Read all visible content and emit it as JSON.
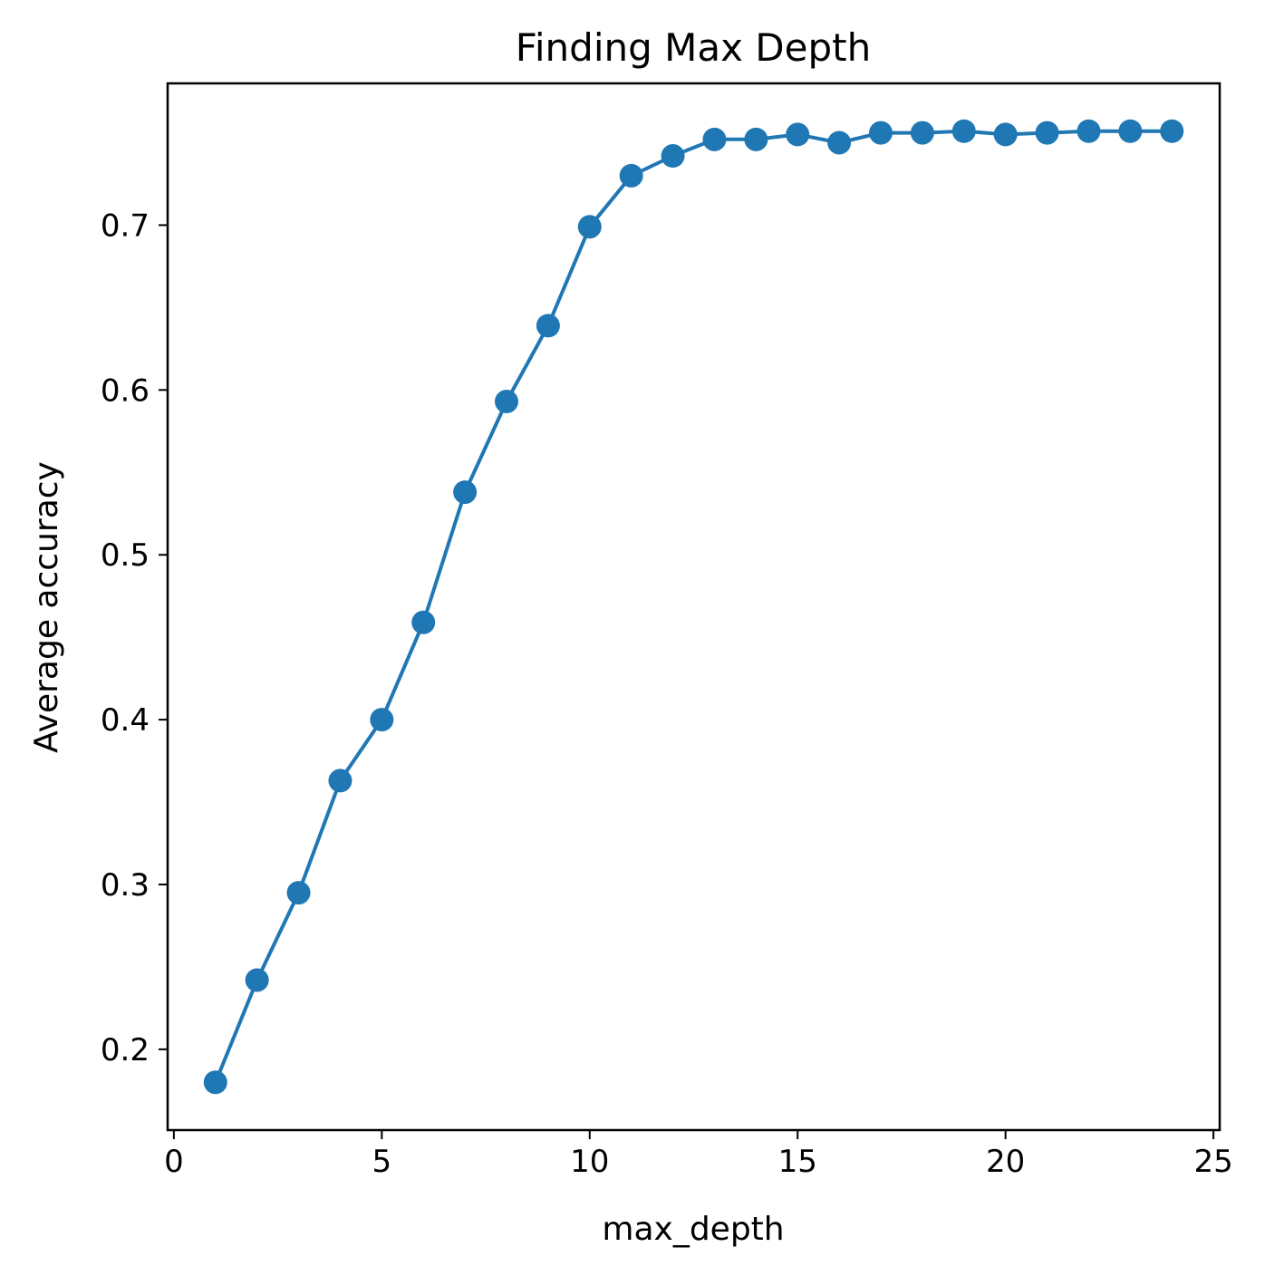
{
  "chart_data": {
    "type": "line",
    "title": "Finding Max Depth",
    "xlabel": "max_depth",
    "ylabel": "Average accuracy",
    "xlim": [
      -0.15,
      25.15
    ],
    "ylim": [
      0.151,
      0.786
    ],
    "xticks": [
      0,
      5,
      10,
      15,
      20,
      25
    ],
    "xtick_labels": [
      "0",
      "5",
      "10",
      "15",
      "20",
      "25"
    ],
    "yticks": [
      0.2,
      0.3,
      0.4,
      0.5,
      0.6,
      0.7
    ],
    "ytick_labels": [
      "0.2",
      "0.3",
      "0.4",
      "0.5",
      "0.6",
      "0.7"
    ],
    "grid": false,
    "line_color": "#1f77b4",
    "marker": "circle",
    "x": [
      1,
      2,
      3,
      4,
      5,
      6,
      7,
      8,
      9,
      10,
      11,
      12,
      13,
      14,
      15,
      16,
      17,
      18,
      19,
      20,
      21,
      22,
      23,
      24
    ],
    "y": [
      0.18,
      0.242,
      0.295,
      0.363,
      0.4,
      0.459,
      0.538,
      0.593,
      0.639,
      0.699,
      0.73,
      0.742,
      0.752,
      0.752,
      0.755,
      0.75,
      0.756,
      0.756,
      0.757,
      0.755,
      0.756,
      0.757,
      0.757,
      0.757
    ]
  }
}
